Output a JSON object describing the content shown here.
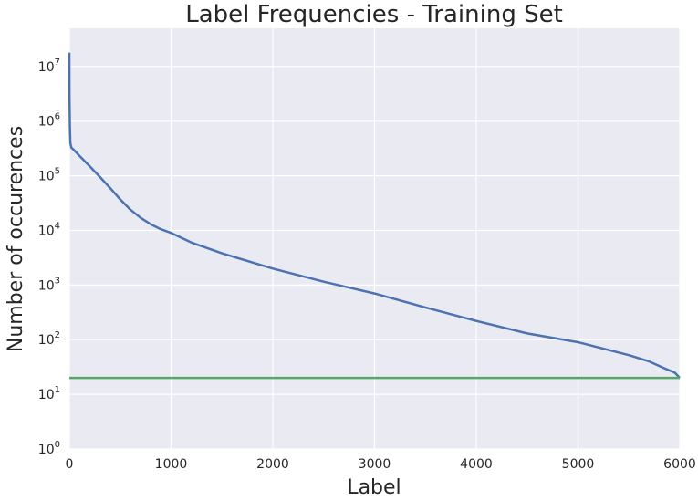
{
  "chart_data": {
    "type": "line",
    "title": "Label Frequencies - Training Set",
    "xlabel": "Label",
    "ylabel": "Number of occurences",
    "xlim": [
      0,
      6000
    ],
    "ylim": [
      1,
      50000000
    ],
    "yscale": "log",
    "grid": true,
    "background_color": "#EAEAF2",
    "x_ticks": [
      0,
      1000,
      2000,
      3000,
      4000,
      5000,
      6000
    ],
    "y_ticks": [
      {
        "base": "10",
        "exp": "0",
        "value": 1
      },
      {
        "base": "10",
        "exp": "1",
        "value": 10
      },
      {
        "base": "10",
        "exp": "2",
        "value": 100
      },
      {
        "base": "10",
        "exp": "3",
        "value": 1000
      },
      {
        "base": "10",
        "exp": "4",
        "value": 10000
      },
      {
        "base": "10",
        "exp": "5",
        "value": 100000
      },
      {
        "base": "10",
        "exp": "6",
        "value": 1000000
      },
      {
        "base": "10",
        "exp": "7",
        "value": 10000000
      }
    ],
    "series": [
      {
        "color": "#4C72B0",
        "x": [
          0,
          2,
          5,
          10,
          20,
          50,
          100,
          200,
          300,
          400,
          500,
          600,
          700,
          800,
          900,
          1000,
          1200,
          1500,
          2000,
          2500,
          3000,
          3500,
          4000,
          4500,
          5000,
          5500,
          5700,
          5850,
          5950,
          6000
        ],
        "y": [
          18000000,
          2500000,
          800000,
          400000,
          330000,
          290000,
          230000,
          150000,
          95000,
          60000,
          37000,
          24000,
          17000,
          13000,
          10500,
          9000,
          6000,
          3800,
          2000,
          1150,
          700,
          390,
          220,
          130,
          90,
          52,
          40,
          30,
          25,
          20
        ]
      },
      {
        "color": "#55A868",
        "x": [
          0,
          6000
        ],
        "y": [
          20,
          20
        ]
      }
    ]
  }
}
